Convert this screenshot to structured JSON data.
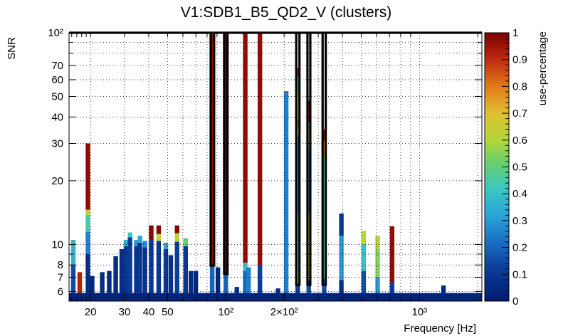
{
  "chart_data": {
    "type": "heatmap",
    "title": "V1:SDB1_B5_QD2_V (clusters)",
    "xlabel": "Frequency [Hz]",
    "ylabel": "SNR",
    "zlabel": "use-percentage",
    "x_scale": "log",
    "y_scale": "log",
    "xlim": [
      15.5,
      2100
    ],
    "ylim": [
      5.4,
      100
    ],
    "zlim": [
      0,
      1
    ],
    "x_ticks": [
      {
        "value": 20,
        "label": "20"
      },
      {
        "value": 30,
        "label": "30"
      },
      {
        "value": 40,
        "label": "40"
      },
      {
        "value": 50,
        "label": "50"
      },
      {
        "value": 100,
        "label": "10²"
      },
      {
        "value": 200,
        "label": "2×10²"
      },
      {
        "value": 1000,
        "label": "10³"
      }
    ],
    "y_ticks": [
      {
        "value": 6,
        "label": "6"
      },
      {
        "value": 7,
        "label": "7"
      },
      {
        "value": 8,
        "label": "8"
      },
      {
        "value": 10,
        "label": "10"
      },
      {
        "value": 20,
        "label": "20"
      },
      {
        "value": 30,
        "label": "30"
      },
      {
        "value": 40,
        "label": "40"
      },
      {
        "value": 50,
        "label": "50"
      },
      {
        "value": 60,
        "label": "60"
      },
      {
        "value": 70,
        "label": "70"
      },
      {
        "value": 100,
        "label": "10²"
      }
    ],
    "z_ticks": [
      {
        "value": 0,
        "label": "0"
      },
      {
        "value": 0.1,
        "label": "0.1"
      },
      {
        "value": 0.2,
        "label": "0.2"
      },
      {
        "value": 0.3,
        "label": "0.3"
      },
      {
        "value": 0.4,
        "label": "0.4"
      },
      {
        "value": 0.5,
        "label": "0.5"
      },
      {
        "value": 0.6,
        "label": "0.6"
      },
      {
        "value": 0.7,
        "label": "0.7"
      },
      {
        "value": 0.8,
        "label": "0.8"
      },
      {
        "value": 0.9,
        "label": "0.9"
      },
      {
        "value": 1,
        "label": "1"
      }
    ],
    "grid": true,
    "background_floor": {
      "f_min": 15.5,
      "f_max": 2100,
      "snr_top": 5.9,
      "use": 0.03
    },
    "columns": [
      {
        "f": 16.3,
        "segments": [
          {
            "snr0": 5.9,
            "snr1": 8.0,
            "use": 0.15
          },
          {
            "snr0": 8.0,
            "snr1": 10.5,
            "use": 0.35
          }
        ]
      },
      {
        "f": 17.6,
        "segments": [
          {
            "snr0": 5.9,
            "snr1": 7.4,
            "use": 0.92
          }
        ]
      },
      {
        "f": 19.4,
        "segments": [
          {
            "snr0": 5.9,
            "snr1": 9.0,
            "use": 0.06
          },
          {
            "snr0": 9.0,
            "snr1": 11.5,
            "use": 0.25
          },
          {
            "snr0": 11.5,
            "snr1": 13.8,
            "use": 0.45
          },
          {
            "snr0": 13.8,
            "snr1": 14.6,
            "use": 0.62
          },
          {
            "snr0": 14.6,
            "snr1": 30,
            "use": 0.97
          }
        ]
      },
      {
        "f": 20.4,
        "segments": [
          {
            "snr0": 5.9,
            "snr1": 7.1,
            "use": 0.05
          }
        ]
      },
      {
        "f": 23,
        "segments": [
          {
            "snr0": 5.9,
            "snr1": 7.4,
            "use": 0.06
          }
        ]
      },
      {
        "f": 25,
        "segments": [
          {
            "snr0": 5.9,
            "snr1": 7.5,
            "use": 0.05
          }
        ]
      },
      {
        "f": 27,
        "segments": [
          {
            "snr0": 5.9,
            "snr1": 8.8,
            "use": 0.06
          }
        ]
      },
      {
        "f": 29,
        "segments": [
          {
            "snr0": 5.9,
            "snr1": 9.5,
            "use": 0.07
          }
        ]
      },
      {
        "f": 30.5,
        "segments": [
          {
            "snr0": 5.9,
            "snr1": 9.8,
            "use": 0.1
          },
          {
            "snr0": 9.8,
            "snr1": 10.5,
            "use": 0.35
          }
        ]
      },
      {
        "f": 32,
        "segments": [
          {
            "snr0": 5.9,
            "snr1": 10.8,
            "use": 0.12
          },
          {
            "snr0": 10.8,
            "snr1": 11.4,
            "use": 0.42
          }
        ]
      },
      {
        "f": 34.5,
        "segments": [
          {
            "snr0": 5.9,
            "snr1": 9.8,
            "use": 0.09
          },
          {
            "snr0": 9.8,
            "snr1": 10.5,
            "use": 0.3
          }
        ]
      },
      {
        "f": 36,
        "segments": [
          {
            "snr0": 5.9,
            "snr1": 10.2,
            "use": 0.1
          },
          {
            "snr0": 10.2,
            "snr1": 11.0,
            "use": 0.32
          }
        ]
      },
      {
        "f": 38.2,
        "segments": [
          {
            "snr0": 5.9,
            "snr1": 9.7,
            "use": 0.08
          },
          {
            "snr0": 9.7,
            "snr1": 10.4,
            "use": 0.28
          }
        ]
      },
      {
        "f": 41.2,
        "segments": [
          {
            "snr0": 5.9,
            "snr1": 10.5,
            "use": 0.1
          },
          {
            "snr0": 10.5,
            "snr1": 12.3,
            "use": 0.98
          }
        ]
      },
      {
        "f": 45,
        "segments": [
          {
            "snr0": 5.9,
            "snr1": 10.4,
            "use": 0.1
          },
          {
            "snr0": 10.4,
            "snr1": 11.2,
            "use": 0.62
          },
          {
            "snr0": 11.2,
            "snr1": 12.3,
            "use": 0.98
          }
        ]
      },
      {
        "f": 49,
        "segments": [
          {
            "snr0": 5.9,
            "snr1": 9.5,
            "use": 0.1
          },
          {
            "snr0": 9.5,
            "snr1": 10.2,
            "use": 0.32
          }
        ]
      },
      {
        "f": 52,
        "segments": [
          {
            "snr0": 5.9,
            "snr1": 8.9,
            "use": 0.08
          }
        ]
      },
      {
        "f": 56,
        "segments": [
          {
            "snr0": 5.9,
            "snr1": 10.3,
            "use": 0.12
          },
          {
            "snr0": 10.3,
            "snr1": 11.3,
            "use": 0.62
          },
          {
            "snr0": 11.3,
            "snr1": 12.3,
            "use": 0.98
          }
        ]
      },
      {
        "f": 62,
        "segments": [
          {
            "snr0": 5.9,
            "snr1": 9.8,
            "use": 0.1
          },
          {
            "snr0": 9.8,
            "snr1": 10.7,
            "use": 0.5
          }
        ]
      },
      {
        "f": 66,
        "segments": [
          {
            "snr0": 5.9,
            "snr1": 7.5,
            "use": 0.06
          }
        ]
      },
      {
        "f": 70,
        "segments": [
          {
            "snr0": 5.9,
            "snr1": 7.5,
            "use": 0.05
          }
        ]
      },
      {
        "f": 85,
        "segments": [
          {
            "snr0": 5.9,
            "snr1": 7.9,
            "use": 0.2
          },
          {
            "snr0": 7.9,
            "snr1": 100,
            "use": 0.97
          }
        ]
      },
      {
        "f": 91,
        "segments": [
          {
            "snr0": 5.9,
            "snr1": 7.8,
            "use": 0.05
          }
        ]
      },
      {
        "f": 100,
        "segments": [
          {
            "snr0": 5.9,
            "snr1": 7.2,
            "use": 0.2
          },
          {
            "snr0": 7.2,
            "snr1": 100,
            "use": 0.97
          }
        ]
      },
      {
        "f": 114,
        "segments": [
          {
            "snr0": 5.9,
            "snr1": 6.3,
            "use": 0.08
          }
        ]
      },
      {
        "f": 126,
        "segments": [
          {
            "snr0": 5.9,
            "snr1": 7.5,
            "use": 0.2
          },
          {
            "snr0": 7.5,
            "snr1": 8.2,
            "use": 0.4
          },
          {
            "snr0": 8.2,
            "snr1": 100,
            "use": 0.97
          }
        ]
      },
      {
        "f": 131,
        "segments": [
          {
            "snr0": 5.9,
            "snr1": 7.8,
            "use": 0.25
          }
        ]
      },
      {
        "f": 150,
        "segments": [
          {
            "snr0": 5.9,
            "snr1": 8.0,
            "use": 0.12
          },
          {
            "snr0": 8.0,
            "snr1": 100,
            "use": 0.97
          }
        ]
      },
      {
        "f": 186,
        "segments": [
          {
            "snr0": 5.9,
            "snr1": 6.2,
            "use": 0.06
          }
        ]
      },
      {
        "f": 205,
        "segments": [
          {
            "snr0": 5.9,
            "snr1": 53,
            "use": 0.25
          }
        ]
      },
      {
        "f": 235,
        "segments": [
          {
            "snr0": 5.9,
            "snr1": 6.5,
            "use": 0.1
          },
          {
            "snr0": 6.5,
            "snr1": 14.0,
            "use": 0.5
          },
          {
            "snr0": 14.0,
            "snr1": 33,
            "use": 0.3
          },
          {
            "snr0": 33,
            "snr1": 36,
            "use": 0.65
          },
          {
            "snr0": 36,
            "snr1": 39,
            "use": 0.8
          },
          {
            "snr0": 39,
            "snr1": 52,
            "use": 0.62
          },
          {
            "snr0": 52,
            "snr1": 62,
            "use": 0.45
          },
          {
            "snr0": 62,
            "snr1": 68,
            "use": 0.9
          }
        ]
      },
      {
        "f": 268,
        "segments": [
          {
            "snr0": 5.9,
            "snr1": 6.8,
            "use": 0.15
          },
          {
            "snr0": 6.8,
            "snr1": 14,
            "use": 0.62
          },
          {
            "snr0": 14,
            "snr1": 28,
            "use": 0.3
          },
          {
            "snr0": 28,
            "snr1": 38,
            "use": 0.55
          },
          {
            "snr0": 38,
            "snr1": 48,
            "use": 0.92
          }
        ]
      },
      {
        "f": 322,
        "segments": [
          {
            "snr0": 5.9,
            "snr1": 6.9,
            "use": 0.15
          },
          {
            "snr0": 6.9,
            "snr1": 26,
            "use": 0.5
          },
          {
            "snr0": 26,
            "snr1": 31,
            "use": 0.8
          },
          {
            "snr0": 31,
            "snr1": 35,
            "use": 0.97
          }
        ]
      },
      {
        "f": 395,
        "segments": [
          {
            "snr0": 5.9,
            "snr1": 6.8,
            "use": 0.08
          },
          {
            "snr0": 6.8,
            "snr1": 11,
            "use": 0.3
          },
          {
            "snr0": 11,
            "snr1": 14,
            "use": 0.1
          }
        ]
      },
      {
        "f": 515,
        "segments": [
          {
            "snr0": 5.9,
            "snr1": 7.5,
            "use": 0.15
          },
          {
            "snr0": 7.5,
            "snr1": 10,
            "use": 0.4
          },
          {
            "snr0": 10,
            "snr1": 11.6,
            "use": 0.6
          }
        ]
      },
      {
        "f": 608,
        "segments": [
          {
            "snr0": 5.9,
            "snr1": 7.0,
            "use": 0.3
          },
          {
            "snr0": 7.0,
            "snr1": 9.5,
            "use": 0.55
          },
          {
            "snr0": 9.5,
            "snr1": 11,
            "use": 0.62
          }
        ]
      },
      {
        "f": 722,
        "segments": [
          {
            "snr0": 5.9,
            "snr1": 6.6,
            "use": 0.12
          },
          {
            "snr0": 6.6,
            "snr1": 8.4,
            "use": 0.97
          },
          {
            "snr0": 8.4,
            "snr1": 12.2,
            "use": 0.97
          }
        ]
      },
      {
        "f": 1330,
        "segments": [
          {
            "snr0": 5.9,
            "snr1": 6.4,
            "use": 0.05
          }
        ]
      }
    ],
    "highlight_outlines": [
      {
        "f0": 83.5,
        "f1": 87,
        "snr0": 7.95
      },
      {
        "f0": 98,
        "f1": 102,
        "snr0": 7.25
      },
      {
        "f0": 231,
        "f1": 240,
        "snr0": 6.45
      },
      {
        "f0": 264,
        "f1": 273,
        "snr0": 6.45
      },
      {
        "f0": 316,
        "f1": 328,
        "snr0": 6.45
      }
    ]
  }
}
